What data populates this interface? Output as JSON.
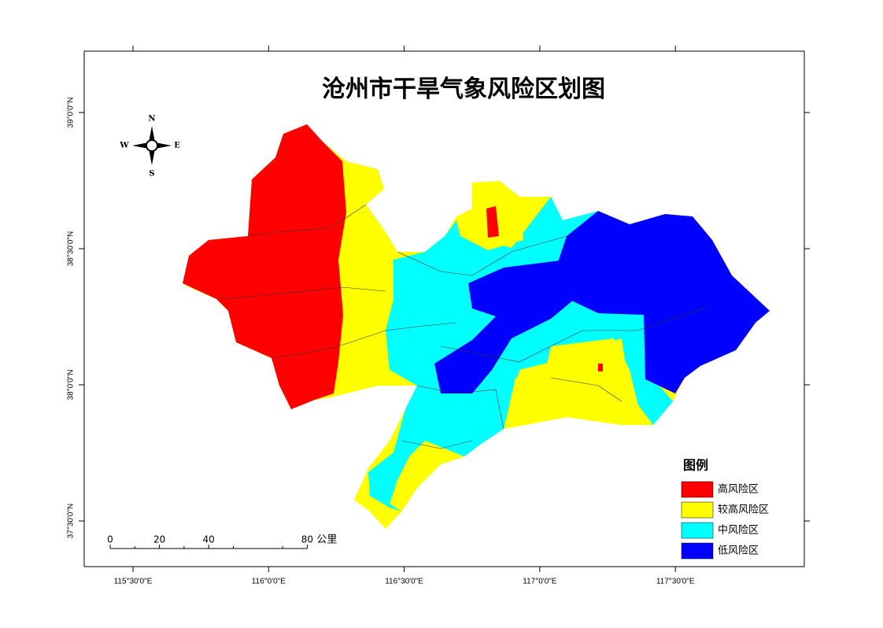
{
  "header": {
    "title": "沧州市干旱气象风险区划图"
  },
  "compass": {
    "n": "N",
    "s": "S",
    "w": "W",
    "e": "E"
  },
  "grid": {
    "latitudes": [
      "39°0'0\"N",
      "38°30'0\"N",
      "38°0'0\"N",
      "37°30'0\"N"
    ],
    "longitudes": [
      "115°30'0\"E",
      "116°0'0\"E",
      "116°30'0\"E",
      "117°0'0\"E",
      "117°30'0\"E"
    ]
  },
  "scale_bar": {
    "ticks": [
      0,
      20,
      40,
      80
    ],
    "unit": "公里"
  },
  "legend": {
    "title": "图例",
    "items": [
      {
        "label": "高风险区",
        "color": "#ff0000"
      },
      {
        "label": "较高风险区",
        "color": "#ffff00"
      },
      {
        "label": "中风险区",
        "color": "#00ffff"
      },
      {
        "label": "低风险区",
        "color": "#0000ff"
      }
    ]
  }
}
